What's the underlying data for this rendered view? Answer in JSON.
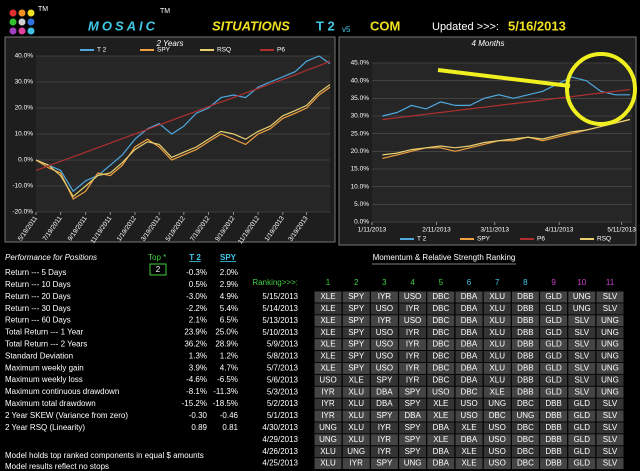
{
  "header": {
    "tm1": "TM",
    "brand": "MOSAIC",
    "tm2": "TM",
    "product": "SITUATIONS",
    "model": "T 2",
    "version": "v5",
    "suffix": "COM",
    "updated_label": "Updated >>>:",
    "updated_date": "5/16/2013"
  },
  "chart_data": [
    {
      "type": "line",
      "title": "2 Years",
      "x": [
        "5/19/2011",
        "6/19/2011",
        "7/19/2011",
        "8/19/2011",
        "9/19/2011",
        "10/19/2011",
        "11/19/2011",
        "12/19/2011",
        "1/19/2012",
        "2/19/2012",
        "3/19/2012",
        "4/19/2012",
        "5/19/2012",
        "6/19/2012",
        "7/19/2012",
        "8/19/2012",
        "9/19/2012",
        "10/19/2012",
        "11/19/2012",
        "12/19/2012",
        "1/19/2013",
        "2/19/2013",
        "3/19/2013",
        "4/19/2013",
        "5/16/2013"
      ],
      "xlim": [
        "5/19/2011",
        "5/16/2013"
      ],
      "xticks": [
        "5/19/2011",
        "7/19/2011",
        "9/19/2011",
        "11/19/2011",
        "1/19/2012",
        "3/19/2012",
        "5/19/2012",
        "7/19/2012",
        "9/19/2012",
        "11/19/2012",
        "1/19/2013",
        "3/19/2013"
      ],
      "ylim": [
        -20,
        40
      ],
      "yticks": [
        {
          "value": -20,
          "label": "-20.0%"
        },
        {
          "value": -10,
          "label": "-10.0%"
        },
        {
          "value": 0,
          "label": "0.0%"
        },
        {
          "value": 10,
          "label": "10.0%"
        },
        {
          "value": 20,
          "label": "20.0%"
        },
        {
          "value": 30,
          "label": "30.0%"
        },
        {
          "value": 40,
          "label": "40.0%"
        }
      ],
      "grid": true,
      "legend": "top",
      "series": [
        {
          "name": "T 2",
          "color": "#4fa8e0",
          "values": [
            0,
            -2,
            -4,
            -12,
            -8,
            -6,
            -2,
            2,
            8,
            12,
            14,
            10,
            13,
            18,
            20,
            24,
            25,
            24,
            28,
            30,
            32,
            34,
            38,
            40,
            37
          ]
        },
        {
          "name": "SPY",
          "color": "#f0a040",
          "values": [
            0,
            -3,
            -5,
            -15,
            -12,
            -5,
            -6,
            -2,
            5,
            8,
            5,
            0,
            2,
            4,
            7,
            10,
            8,
            6,
            10,
            12,
            16,
            18,
            20,
            25,
            28
          ]
        },
        {
          "name": "RSQ",
          "color": "#e8d070",
          "values": [
            0,
            -2,
            -6,
            -14,
            -10,
            -6,
            -5,
            -1,
            4,
            7,
            6,
            1,
            3,
            5,
            8,
            11,
            10,
            8,
            11,
            13,
            17,
            19,
            21,
            26,
            29
          ]
        },
        {
          "name": "P6",
          "color": "#b03030",
          "values": [
            -4,
            -2.25,
            -0.5,
            1.25,
            3,
            4.75,
            6.5,
            8.25,
            10,
            11.75,
            13.5,
            15.25,
            17,
            18.75,
            20.5,
            22.25,
            24,
            25.75,
            27.5,
            29.25,
            31,
            32.75,
            34.5,
            36.25,
            38
          ]
        }
      ]
    },
    {
      "type": "line",
      "title": "4 Months",
      "x": [
        "1/16/2013",
        "1/23/2013",
        "1/30/2013",
        "2/6/2013",
        "2/13/2013",
        "2/20/2013",
        "2/27/2013",
        "3/6/2013",
        "3/13/2013",
        "3/20/2013",
        "3/27/2013",
        "4/3/2013",
        "4/10/2013",
        "4/17/2013",
        "4/24/2013",
        "5/1/2013",
        "5/8/2013",
        "5/15/2013"
      ],
      "xlim": [
        "1/11/2013",
        "5/16/2013"
      ],
      "xticks": [
        "1/11/2013",
        "2/11/2013",
        "3/11/2013",
        "4/11/2013",
        "5/11/2013"
      ],
      "ylim": [
        0,
        45
      ],
      "yticks": [
        {
          "value": 0,
          "label": "0.0%"
        },
        {
          "value": 5,
          "label": "5.0%"
        },
        {
          "value": 10,
          "label": "10.0%"
        },
        {
          "value": 15,
          "label": "15.0%"
        },
        {
          "value": 20,
          "label": "20.0%"
        },
        {
          "value": 25,
          "label": "25.0%"
        },
        {
          "value": 30,
          "label": "30.0%"
        },
        {
          "value": 35,
          "label": "35.0%"
        },
        {
          "value": 40,
          "label": "40.0%"
        },
        {
          "value": 45,
          "label": "45.0%"
        }
      ],
      "grid": true,
      "legend": "bottom",
      "series": [
        {
          "name": "T 2",
          "color": "#4fa8e0",
          "values": [
            30,
            31,
            33,
            32,
            34,
            33,
            33,
            35,
            36,
            35,
            36,
            37,
            39,
            41,
            40,
            37,
            36,
            36
          ]
        },
        {
          "name": "SPY",
          "color": "#f0a040",
          "values": [
            18,
            19,
            20,
            21,
            21,
            20,
            21,
            22,
            23,
            23,
            24,
            23,
            24,
            25,
            26,
            27,
            28,
            29
          ]
        },
        {
          "name": "P6",
          "color": "#b03030",
          "values": [
            29,
            29.5,
            30,
            30.5,
            31,
            31.5,
            32,
            32.5,
            33,
            33.5,
            34,
            34.5,
            35,
            35.5,
            36,
            36.5,
            37,
            37.5
          ]
        },
        {
          "name": "RSQ",
          "color": "#e8d070",
          "values": [
            19,
            19.5,
            20.5,
            21,
            21.5,
            21,
            21.5,
            22.5,
            23,
            23.5,
            24,
            23.5,
            24.5,
            25.5,
            26,
            27,
            28,
            29
          ]
        }
      ]
    }
  ],
  "performance": {
    "title": "Performance for Positions",
    "top_label": "Top *",
    "top_value": 2,
    "columns": [
      "T 2",
      "SPY"
    ],
    "rows": [
      [
        "Return --- 5 Days",
        "-0.3%",
        "2.0%"
      ],
      [
        "Return --- 10 Days",
        "0.5%",
        "2.9%"
      ],
      [
        "Return --- 20 Days",
        "-3.0%",
        "4.9%"
      ],
      [
        "Return --- 30 Days",
        "-2.2%",
        "5.4%"
      ],
      [
        "Return --- 60 Days",
        "2.1%",
        "6.5%"
      ],
      [
        "Total Return --- 1 Year",
        "23.9%",
        "25.0%"
      ],
      [
        "Total Return --- 2 Years",
        "36.2%",
        "28.9%"
      ],
      [
        "Standard Deviation",
        "1.3%",
        "1.2%"
      ],
      [
        "Maximum weekly gain",
        "3.9%",
        "4.7%"
      ],
      [
        "Maximum weekly loss",
        "-4.6%",
        "-6.5%"
      ],
      [
        "Maximum continuous drawdown",
        "-8.1%",
        "-11.3%"
      ],
      [
        "Maximum total drawdown",
        "-15.2%",
        "-18.5%"
      ],
      [
        "2 Year SKEW  (Variance from zero)",
        "-0.30",
        "-0.46"
      ],
      [
        "2 Year RSQ  (Linearity)",
        "0.89",
        "0.81"
      ]
    ],
    "notes": [
      "Model holds top ranked  components in equal  $ amounts",
      "Model results reflect no stops"
    ]
  },
  "ranking": {
    "title": "Momentum & Relative Strength Ranking",
    "header_label": "Ranking>>>:",
    "ranks": [
      1,
      2,
      3,
      4,
      5,
      6,
      7,
      8,
      9,
      10,
      11
    ],
    "rows": [
      [
        "5/15/2013",
        "XLE",
        "SPY",
        "IYR",
        "USO",
        "DBC",
        "DBA",
        "XLU",
        "DBB",
        "GLD",
        "UNG",
        "SLV"
      ],
      [
        "5/14/2013",
        "XLE",
        "SPY",
        "USO",
        "IYR",
        "DBC",
        "DBA",
        "XLU",
        "DBB",
        "GLD",
        "UNG",
        "SLV"
      ],
      [
        "5/13/2013",
        "XLE",
        "SPY",
        "IYR",
        "USO",
        "DBC",
        "DBA",
        "XLU",
        "DBB",
        "GLD",
        "SLV",
        "UNG"
      ],
      [
        "5/10/2013",
        "XLE",
        "SPY",
        "USO",
        "IYR",
        "DBC",
        "DBA",
        "XLU",
        "DBB",
        "GLD",
        "SLV",
        "UNG"
      ],
      [
        "5/9/2013",
        "XLE",
        "SPY",
        "USO",
        "IYR",
        "DBC",
        "DBA",
        "XLU",
        "DBB",
        "GLD",
        "SLV",
        "UNG"
      ],
      [
        "5/8/2013",
        "XLE",
        "SPY",
        "USO",
        "IYR",
        "DBC",
        "DBA",
        "XLU",
        "DBB",
        "GLD",
        "SLV",
        "UNG"
      ],
      [
        "5/7/2013",
        "XLE",
        "SPY",
        "USO",
        "IYR",
        "DBC",
        "DBA",
        "XLU",
        "DBB",
        "GLD",
        "SLV",
        "UNG"
      ],
      [
        "5/6/2013",
        "USO",
        "XLE",
        "SPY",
        "IYR",
        "DBC",
        "DBA",
        "XLU",
        "DBB",
        "GLD",
        "SLV",
        "UNG"
      ],
      [
        "5/3/2013",
        "IYR",
        "XLU",
        "DBA",
        "SPY",
        "USO",
        "DBC",
        "XLE",
        "DBB",
        "GLD",
        "SLV",
        "UNG"
      ],
      [
        "5/2/2013",
        "IYR",
        "XLU",
        "DBA",
        "SPY",
        "XLE",
        "USO",
        "UNG",
        "DBC",
        "DBB",
        "GLD",
        "SLV"
      ],
      [
        "5/1/2013",
        "IYR",
        "XLU",
        "SPY",
        "DBA",
        "XLE",
        "USO",
        "DBC",
        "UNG",
        "DBB",
        "GLD",
        "SLV"
      ],
      [
        "4/30/2013",
        "UNG",
        "XLU",
        "IYR",
        "SPY",
        "DBA",
        "XLE",
        "USO",
        "DBC",
        "DBB",
        "GLD",
        "SLV"
      ],
      [
        "4/29/2013",
        "UNG",
        "XLU",
        "IYR",
        "SPY",
        "XLE",
        "DBA",
        "USO",
        "DBC",
        "DBB",
        "GLD",
        "SLV"
      ],
      [
        "4/26/2013",
        "XLU",
        "UNG",
        "IYR",
        "SPY",
        "DBA",
        "XLE",
        "USO",
        "DBC",
        "DBB",
        "GLD",
        "SLV"
      ],
      [
        "4/25/2013",
        "XLU",
        "IYR",
        "SPY",
        "UNG",
        "DBA",
        "XLE",
        "USO",
        "DBC",
        "DBB",
        "GLD",
        "SLV"
      ]
    ]
  }
}
